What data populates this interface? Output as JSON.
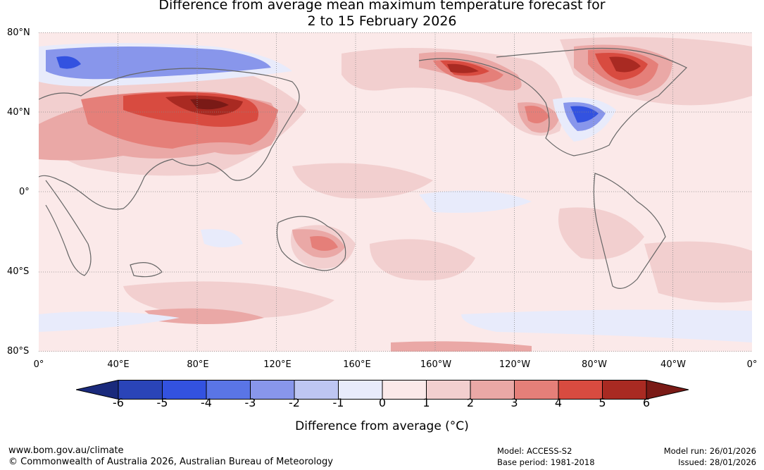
{
  "title": {
    "line1": "Difference from average mean maximum temperature forecast for",
    "line2": "2 to 15 February 2026"
  },
  "lat_labels": [
    "80°N",
    "40°N",
    "0°",
    "40°S",
    "80°S"
  ],
  "lon_labels": [
    "0°",
    "40°E",
    "80°E",
    "120°E",
    "160°E",
    "160°W",
    "120°W",
    "80°W",
    "40°W",
    "0°"
  ],
  "colorbar": {
    "ticks": [
      "-6",
      "-5",
      "-4",
      "-3",
      "-2",
      "-1",
      "0",
      "1",
      "2",
      "3",
      "4",
      "5",
      "6"
    ],
    "colors": [
      "#1a2a7c",
      "#2a44b8",
      "#3352e0",
      "#5a75e6",
      "#8896eb",
      "#bec6f2",
      "#e8ebfb",
      "#fbe9e9",
      "#f2cfcf",
      "#eaa8a6",
      "#e57f79",
      "#d84b40",
      "#a92a22",
      "#7a1a16"
    ],
    "title": "Difference from average (°C)"
  },
  "map_colors": {
    "ocean_base": "#fbe9e9",
    "coast": "#666666",
    "grid": "#888888"
  },
  "footer": {
    "url": "www.bom.gov.au/climate",
    "copyright": "© Commonwealth of Australia 2026, Australian Bureau of Meteorology",
    "model": "Model: ACCESS-S2",
    "base_period": "Base period: 1981-2018",
    "model_run": "Model run: 26/01/2026",
    "issued": "Issued: 28/01/2026"
  }
}
